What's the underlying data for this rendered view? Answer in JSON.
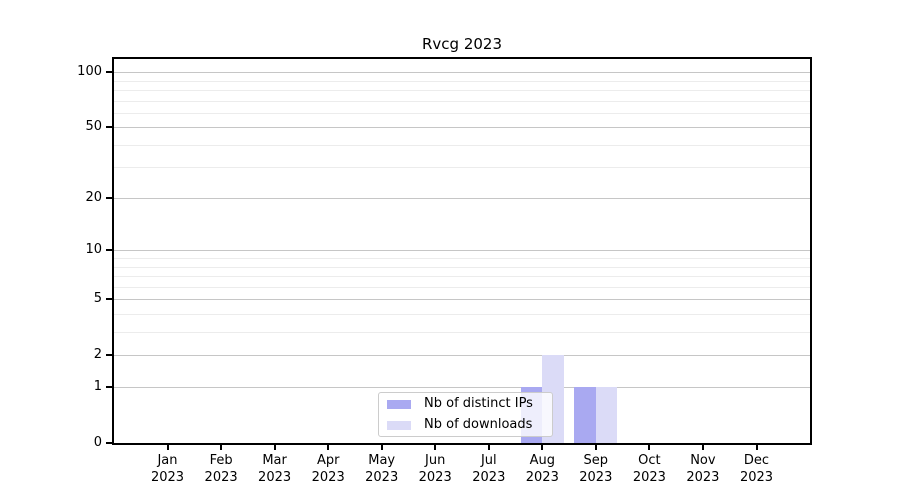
{
  "figure": {
    "title": "Rvcg 2023"
  },
  "chart_data": {
    "type": "bar",
    "title": "Rvcg 2023",
    "categories": [
      "Jan 2023",
      "Feb 2023",
      "Mar 2023",
      "Apr 2023",
      "May 2023",
      "Jun 2023",
      "Jul 2023",
      "Aug 2023",
      "Sep 2023",
      "Oct 2023",
      "Nov 2023",
      "Dec 2023"
    ],
    "series": [
      {
        "name": "Nb of distinct IPs",
        "color": "#a9a9f1",
        "values": [
          0,
          0,
          0,
          0,
          0,
          0,
          0,
          1,
          1,
          0,
          0,
          0
        ]
      },
      {
        "name": "Nb of downloads",
        "color": "#dbdbf7",
        "values": [
          0,
          0,
          0,
          0,
          0,
          0,
          0,
          2,
          1,
          0,
          0,
          0
        ]
      }
    ],
    "yaxis": {
      "scale": "log1p",
      "range": [
        0,
        118
      ],
      "major_ticks": [
        0,
        1,
        2,
        5,
        10,
        20,
        50,
        100
      ],
      "minor_gridlines": [
        3,
        4,
        6,
        7,
        8,
        9,
        30,
        40,
        60,
        70,
        80,
        90
      ],
      "grid": true
    },
    "xaxis": {
      "tick_label_lines": 2
    },
    "legend": {
      "position": "lower center",
      "entries": [
        "Nb of distinct IPs",
        "Nb of downloads"
      ]
    },
    "colors": {
      "major_grid": "#c6c6c6",
      "minor_grid": "#ececec",
      "axis": "#000000"
    }
  }
}
